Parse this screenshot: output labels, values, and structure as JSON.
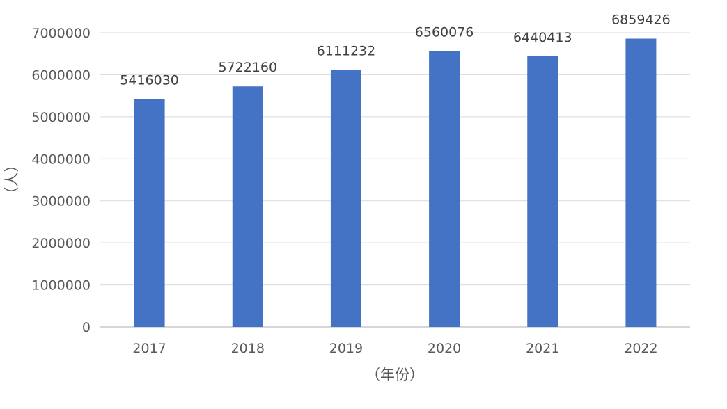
{
  "chart_data": {
    "type": "bar",
    "title": "",
    "xlabel": "（年份）",
    "ylabel": "（人）",
    "categories": [
      "2017",
      "2018",
      "2019",
      "2020",
      "2021",
      "2022"
    ],
    "values": [
      5416030,
      5722160,
      6111232,
      6560076,
      6440413,
      6859426
    ],
    "data_labels": [
      "5416030",
      "5722160",
      "6111232",
      "6560076",
      "6440413",
      "6859426"
    ],
    "ylim": [
      0,
      7000000
    ],
    "yticks": [
      0,
      1000000,
      2000000,
      3000000,
      4000000,
      5000000,
      6000000,
      7000000
    ],
    "ytick_labels": [
      "0",
      "1000000",
      "2000000",
      "3000000",
      "4000000",
      "5000000",
      "6000000",
      "7000000"
    ],
    "grid": true,
    "legend": "none",
    "bar_color": "#4472c4"
  }
}
